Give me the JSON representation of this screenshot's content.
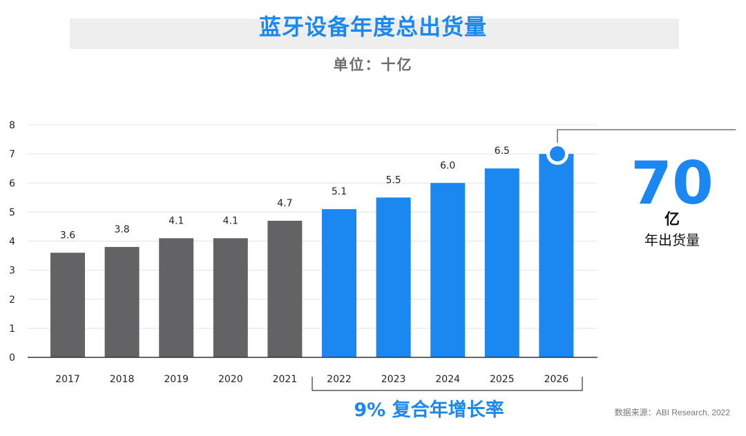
{
  "header": {
    "title": "蓝牙设备年度总出货量",
    "unit": "单位：十亿"
  },
  "chart_data": {
    "type": "bar",
    "categories": [
      "2017",
      "2018",
      "2019",
      "2020",
      "2021",
      "2022",
      "2023",
      "2024",
      "2025",
      "2026"
    ],
    "values": [
      3.6,
      3.8,
      4.1,
      4.1,
      4.7,
      5.1,
      5.5,
      6.0,
      6.5,
      7.0
    ],
    "value_labels": [
      "3.6",
      "3.8",
      "4.1",
      "4.1",
      "4.7",
      "5.1",
      "5.5",
      "6.0",
      "6.5",
      ""
    ],
    "title": "蓝牙设备年度总出货量",
    "subtitle": "单位：十亿",
    "xlabel": "",
    "ylabel": "",
    "ylim": [
      0,
      8
    ],
    "yticks": [
      0,
      1,
      2,
      3,
      4,
      5,
      6,
      7,
      8
    ],
    "grid": true,
    "legend": "none",
    "colors": {
      "actual": "#636366",
      "forecast": "#1a88f0"
    },
    "forecast_start_index": 5
  },
  "callout": {
    "number": "70",
    "unit": "亿",
    "caption": "年出货量"
  },
  "cagr": {
    "label": "9% 复合年增长率"
  },
  "source": {
    "text": "数据来源：ABI Research, 2022"
  }
}
